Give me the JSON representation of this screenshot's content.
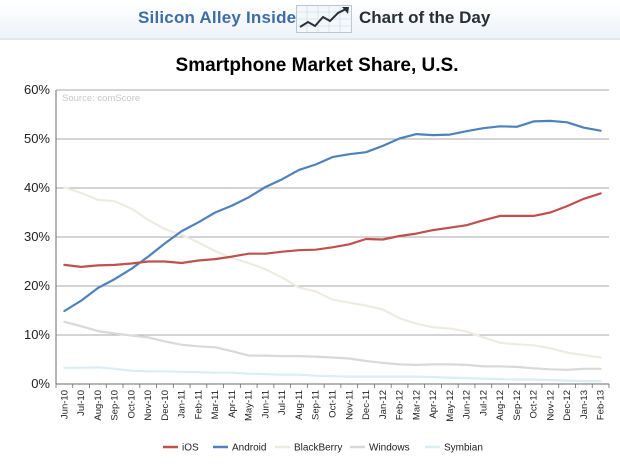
{
  "header": {
    "brand": "Silicon Alley Insider",
    "section": "Chart of the Day"
  },
  "chart_data": {
    "type": "line",
    "title": "Smartphone Market Share, U.S.",
    "source": "Source: comScore",
    "xlabel": "",
    "ylabel": "",
    "ylim": [
      0,
      60
    ],
    "yticks": [
      "0%",
      "10%",
      "20%",
      "30%",
      "40%",
      "50%",
      "60%"
    ],
    "grid": true,
    "legend_position": "bottom",
    "categories": [
      "Jun-10",
      "Jul-10",
      "Aug-10",
      "Sep-10",
      "Oct-10",
      "Nov-10",
      "Dec-10",
      "Jan-11",
      "Feb-11",
      "Mar-11",
      "Apr-11",
      "May-11",
      "Jun-11",
      "Jul-11",
      "Aug-11",
      "Sep-11",
      "Oct-11",
      "Nov-11",
      "Dec-11",
      "Jan-12",
      "Feb-12",
      "Mar-12",
      "Apr-12",
      "May-12",
      "Jun-12",
      "Jul-12",
      "Aug-12",
      "Sep-12",
      "Oct-12",
      "Nov-12",
      "Dec-12",
      "Jan-13",
      "Feb-13"
    ],
    "series": [
      {
        "name": "iOS",
        "color": "#c0504d",
        "values": [
          24.3,
          23.9,
          24.2,
          24.3,
          24.6,
          25.0,
          25.0,
          24.7,
          25.2,
          25.5,
          26.0,
          26.6,
          26.6,
          27.0,
          27.3,
          27.4,
          27.9,
          28.5,
          29.6,
          29.5,
          30.2,
          30.7,
          31.4,
          31.9,
          32.4,
          33.4,
          34.3,
          34.3,
          34.3,
          35.0,
          36.3,
          37.8,
          38.9
        ]
      },
      {
        "name": "Android",
        "color": "#4f81bd",
        "values": [
          14.9,
          17.0,
          19.6,
          21.4,
          23.5,
          26.0,
          28.7,
          31.2,
          33.0,
          35.0,
          36.4,
          38.1,
          40.2,
          41.8,
          43.7,
          44.8,
          46.3,
          46.9,
          47.3,
          48.6,
          50.1,
          51.0,
          50.8,
          50.9,
          51.6,
          52.2,
          52.6,
          52.5,
          53.6,
          53.7,
          53.4,
          52.3,
          51.7
        ]
      },
      {
        "name": "BlackBerry",
        "color": "#eeece1",
        "values": [
          40.1,
          39.0,
          37.6,
          37.3,
          35.8,
          33.5,
          31.6,
          30.4,
          28.9,
          27.1,
          25.7,
          24.7,
          23.4,
          21.7,
          19.7,
          18.9,
          17.2,
          16.6,
          16.0,
          15.2,
          13.4,
          12.3,
          11.6,
          11.3,
          10.7,
          9.5,
          8.4,
          8.1,
          7.9,
          7.3,
          6.4,
          5.9,
          5.4
        ]
      },
      {
        "name": "Windows",
        "color": "#d9d9d9",
        "values": [
          12.7,
          11.8,
          10.8,
          10.3,
          9.9,
          9.5,
          8.7,
          8.0,
          7.7,
          7.5,
          6.7,
          5.8,
          5.8,
          5.7,
          5.7,
          5.6,
          5.4,
          5.2,
          4.7,
          4.3,
          4.0,
          3.9,
          4.0,
          4.0,
          3.9,
          3.6,
          3.6,
          3.5,
          3.2,
          3.0,
          2.9,
          3.1,
          3.1
        ]
      },
      {
        "name": "Symbian",
        "color": "#daeef3",
        "values": [
          3.3,
          3.3,
          3.4,
          3.1,
          2.7,
          2.6,
          2.6,
          2.5,
          2.4,
          2.3,
          2.3,
          2.1,
          2.0,
          1.9,
          1.9,
          1.7,
          1.6,
          1.5,
          1.5,
          1.5,
          1.5,
          1.5,
          1.4,
          1.3,
          1.2,
          1.1,
          1.0,
          0.9,
          0.9,
          0.8,
          0.7,
          0.6,
          0.6
        ]
      }
    ]
  }
}
